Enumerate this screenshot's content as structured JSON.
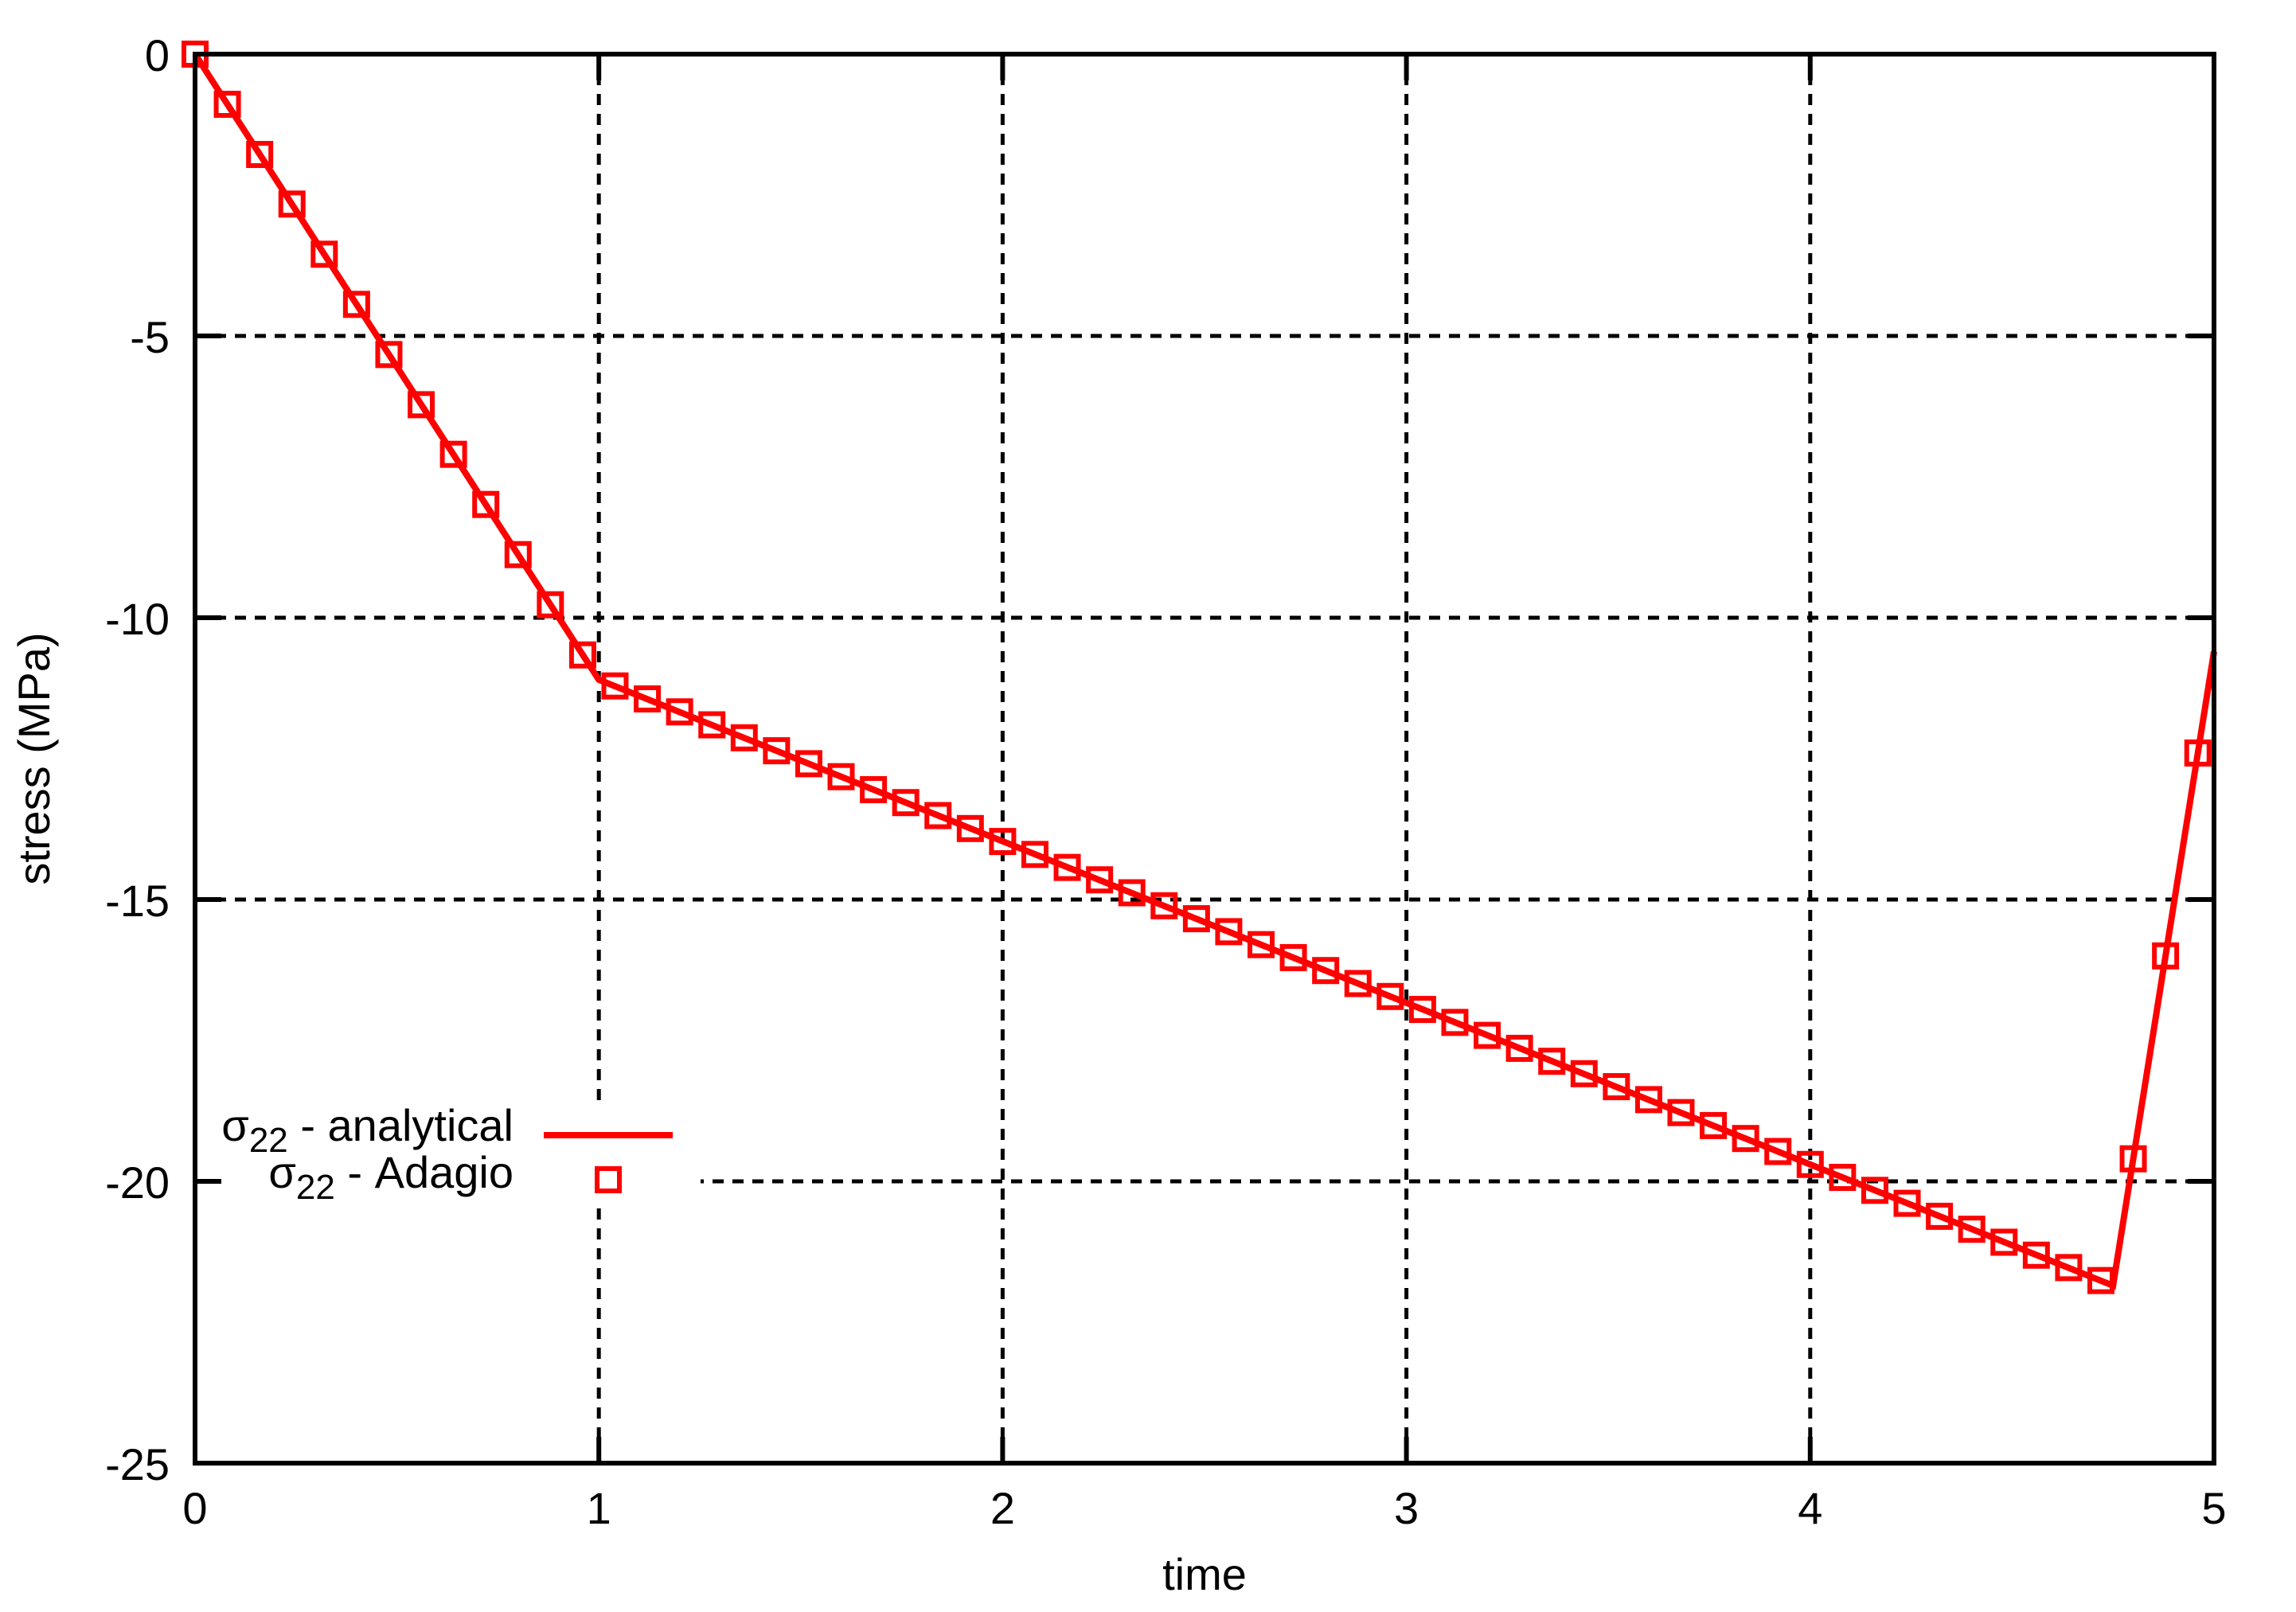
{
  "figure": {
    "background": "#ffffff",
    "axis_color": "#000000",
    "series_color": "#ff0000"
  },
  "chart_data": {
    "type": "line",
    "title": "",
    "xlabel": "time",
    "ylabel": "stress (MPa)",
    "xlim": [
      0,
      5
    ],
    "ylim": [
      -25,
      0
    ],
    "xticks": {
      "values": [
        0,
        1,
        2,
        3,
        4,
        5
      ],
      "labels": [
        "0",
        "1",
        "2",
        "3",
        "4",
        "5"
      ]
    },
    "yticks": {
      "values": [
        0,
        -5,
        -10,
        -15,
        -20,
        -25
      ],
      "labels": [
        "0",
        "-5",
        "-10",
        "-15",
        "-20",
        "-25"
      ]
    },
    "grid": "dotted black lines at interior major ticks",
    "legend_position": "inside left, below middle, opaque background, labels right-aligned",
    "series": [
      {
        "name": "sigma22 - analytical",
        "style": "solid-line",
        "color": "#ff0000",
        "points": [
          [
            0,
            0
          ],
          [
            1,
            -11.1
          ],
          [
            4.75,
            -21.85
          ],
          [
            5,
            -10.6
          ]
        ]
      },
      {
        "name": "sigma22 - Adagio",
        "style": "open-square-markers",
        "color": "#ff0000",
        "points": [
          [
            0.0,
            0.0
          ],
          [
            0.08,
            -0.89
          ],
          [
            0.16,
            -1.78
          ],
          [
            0.24,
            -2.66
          ],
          [
            0.32,
            -3.55
          ],
          [
            0.4,
            -4.44
          ],
          [
            0.48,
            -5.33
          ],
          [
            0.56,
            -6.22
          ],
          [
            0.64,
            -7.1
          ],
          [
            0.72,
            -7.99
          ],
          [
            0.8,
            -8.88
          ],
          [
            0.88,
            -9.77
          ],
          [
            0.96,
            -10.66
          ],
          [
            1.04,
            -11.21
          ],
          [
            1.12,
            -11.44
          ],
          [
            1.2,
            -11.67
          ],
          [
            1.28,
            -11.9
          ],
          [
            1.36,
            -12.13
          ],
          [
            1.44,
            -12.36
          ],
          [
            1.52,
            -12.59
          ],
          [
            1.6,
            -12.82
          ],
          [
            1.68,
            -13.05
          ],
          [
            1.76,
            -13.28
          ],
          [
            1.84,
            -13.51
          ],
          [
            1.92,
            -13.74
          ],
          [
            2.0,
            -13.97
          ],
          [
            2.08,
            -14.2
          ],
          [
            2.16,
            -14.43
          ],
          [
            2.24,
            -14.65
          ],
          [
            2.32,
            -14.88
          ],
          [
            2.4,
            -15.11
          ],
          [
            2.48,
            -15.34
          ],
          [
            2.56,
            -15.57
          ],
          [
            2.64,
            -15.8
          ],
          [
            2.72,
            -16.03
          ],
          [
            2.8,
            -16.26
          ],
          [
            2.88,
            -16.49
          ],
          [
            2.96,
            -16.72
          ],
          [
            3.04,
            -16.95
          ],
          [
            3.12,
            -17.18
          ],
          [
            3.2,
            -17.41
          ],
          [
            3.28,
            -17.64
          ],
          [
            3.36,
            -17.87
          ],
          [
            3.44,
            -18.09
          ],
          [
            3.52,
            -18.32
          ],
          [
            3.6,
            -18.55
          ],
          [
            3.68,
            -18.78
          ],
          [
            3.76,
            -19.01
          ],
          [
            3.84,
            -19.24
          ],
          [
            3.92,
            -19.47
          ],
          [
            4.0,
            -19.7
          ],
          [
            4.08,
            -19.93
          ],
          [
            4.16,
            -20.16
          ],
          [
            4.24,
            -20.39
          ],
          [
            4.32,
            -20.62
          ],
          [
            4.4,
            -20.85
          ],
          [
            4.48,
            -21.08
          ],
          [
            4.56,
            -21.31
          ],
          [
            4.64,
            -21.53
          ],
          [
            4.72,
            -21.76
          ],
          [
            4.8,
            -19.6
          ],
          [
            4.88,
            -16.0
          ],
          [
            4.96,
            -12.4
          ]
        ]
      }
    ],
    "legend": {
      "entries": [
        {
          "sigma": "σ",
          "sub": "22",
          "rest": " - analytical",
          "sample": "line"
        },
        {
          "sigma": "σ",
          "sub": "22",
          "rest": " - Adagio",
          "sample": "open-square"
        }
      ]
    }
  }
}
